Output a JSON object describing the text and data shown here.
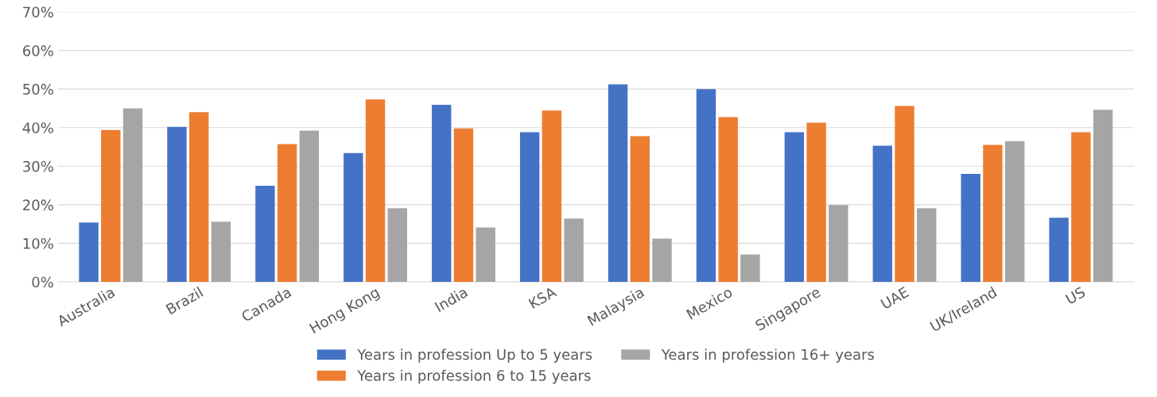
{
  "chart_data": {
    "type": "bar",
    "categories": [
      "Australia",
      "Brazil",
      "Canada",
      "Hong Kong",
      "India",
      "KSA",
      "Malaysia",
      "Mexico",
      "Singapore",
      "UAE",
      "UK/Ireland",
      "US"
    ],
    "series": [
      {
        "name": "Years in profession Up to 5 years",
        "color": "#4472c4",
        "values": [
          15.4,
          40.2,
          24.9,
          33.4,
          45.9,
          38.8,
          51.2,
          50.0,
          38.8,
          35.3,
          28.0,
          16.6
        ]
      },
      {
        "name": "Years in profession 6 to 15 years",
        "color": "#ed7d31",
        "values": [
          39.4,
          44.0,
          35.7,
          47.3,
          39.8,
          44.4,
          37.8,
          42.7,
          41.3,
          45.6,
          35.5,
          38.8
        ]
      },
      {
        "name": "Years in profession 16+ years",
        "color": "#a5a5a5",
        "values": [
          45.0,
          15.6,
          39.2,
          19.1,
          14.1,
          16.4,
          11.2,
          7.1,
          19.9,
          19.1,
          36.5,
          44.6
        ]
      }
    ],
    "ylim": [
      0,
      70
    ],
    "yticks": [
      {
        "value": 0,
        "label": "0%"
      },
      {
        "value": 10,
        "label": "10%"
      },
      {
        "value": 20,
        "label": "20%"
      },
      {
        "value": 30,
        "label": "30%"
      },
      {
        "value": 40,
        "label": "40%"
      },
      {
        "value": 50,
        "label": "50%"
      },
      {
        "value": 60,
        "label": "60%"
      },
      {
        "value": 70,
        "label": "70%"
      }
    ],
    "grid": "y",
    "legend": "bottom"
  }
}
